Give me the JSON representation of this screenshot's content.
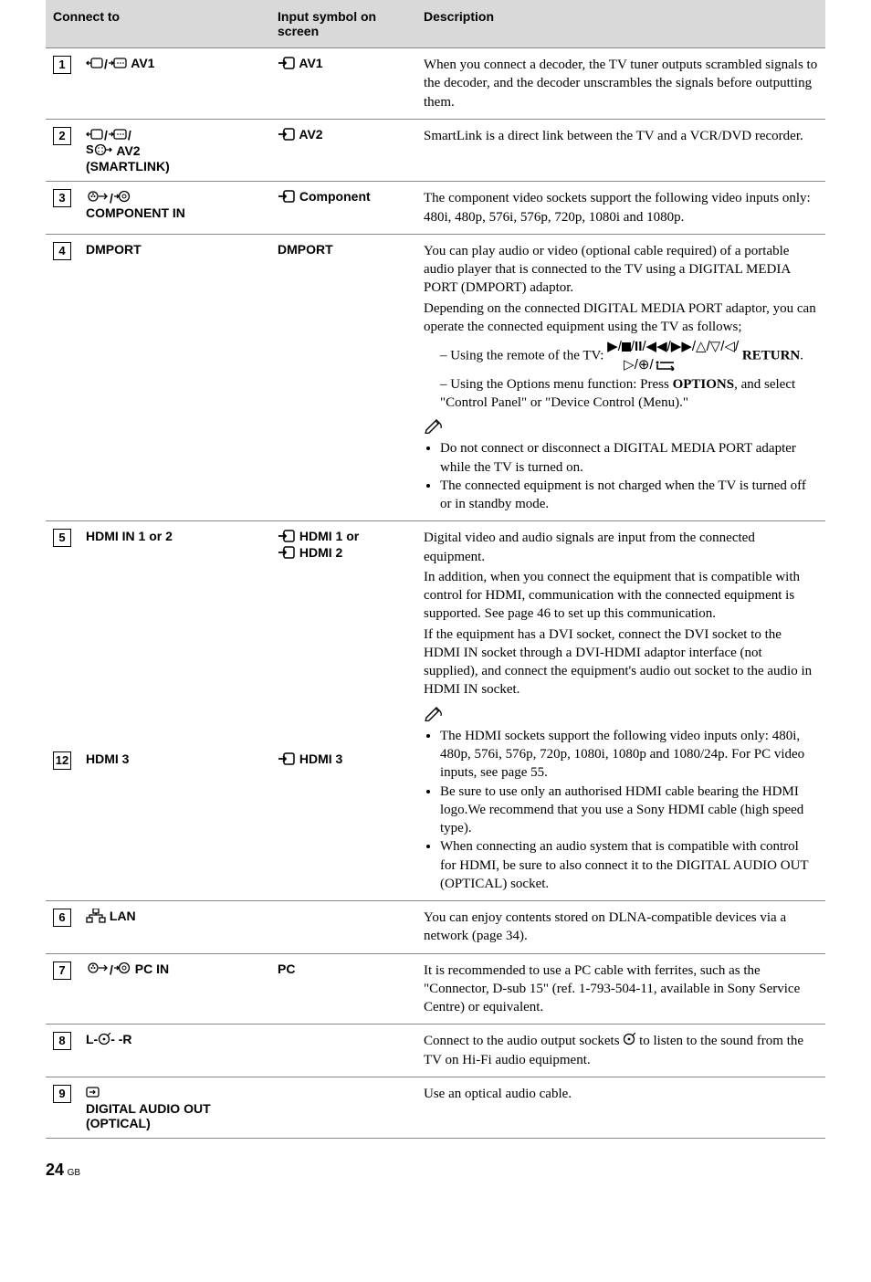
{
  "header": {
    "col1": "Connect to",
    "col2": "Input symbol on screen",
    "col3": "Description"
  },
  "rows": [
    {
      "num": "1",
      "connect_pre_icons": [
        "scart-out",
        "slash",
        "scart-in"
      ],
      "connect_label": "AV1",
      "symbol_pre_icons": [
        "input-arrow"
      ],
      "symbol_label": "AV1",
      "desc_paragraphs": [
        "When you connect a decoder, the TV tuner outputs scrambled signals to the decoder, and the decoder unscrambles the signals before outputting them."
      ]
    },
    {
      "num": "2",
      "connect_lines": [
        {
          "pre_icons": [
            "scart-out",
            "slash",
            "scart-in",
            "slash"
          ],
          "label": ""
        },
        {
          "pre_icons": [
            "s-video"
          ],
          "label": "AV2"
        },
        {
          "pre_icons": [],
          "label": "(SMARTLINK)"
        }
      ],
      "symbol_pre_icons": [
        "input-arrow"
      ],
      "symbol_label": "AV2",
      "desc_paragraphs": [
        "SmartLink is a direct link between the TV and a VCR/DVD recorder."
      ]
    },
    {
      "num": "3",
      "connect_lines": [
        {
          "pre_icons": [
            "rca",
            "slash",
            "video-in"
          ],
          "label": ""
        },
        {
          "pre_icons": [],
          "label": "COMPONENT IN"
        }
      ],
      "symbol_pre_icons": [
        "input-arrow"
      ],
      "symbol_label": "Component",
      "desc_paragraphs": [
        "The component video sockets support the following video inputs only: 480i, 480p, 576i, 576p, 720p, 1080i and 1080p."
      ]
    },
    {
      "num": "4",
      "connect_label_plain": "DMPORT",
      "symbol_label_plain": "DMPORT",
      "desc_blocks": [
        {
          "type": "p",
          "text": "You can play audio or video (optional cable required) of a portable audio player that is connected to the TV using a DIGITAL MEDIA PORT (DMPORT) adaptor."
        },
        {
          "type": "p",
          "text": "Depending on the connected DIGITAL MEDIA PORT adaptor, you can operate the connected equipment using the TV as follows;"
        },
        {
          "type": "indent-remote",
          "prefix": "– Using the remote of the TV: ",
          "suffix_bold": " RETURN",
          "suffix": "."
        },
        {
          "type": "indent",
          "prefix": "– Using the Options menu function: Press ",
          "bold": "OPTIONS",
          "suffix": ", and select \"Control Panel\" or \"Device Control (Menu).\""
        },
        {
          "type": "pen"
        },
        {
          "type": "bullet",
          "text": "Do not connect or disconnect a DIGITAL MEDIA PORT adapter while the TV is turned on."
        },
        {
          "type": "bullet",
          "text": "The connected equipment is not charged when the TV is turned off or in standby mode."
        }
      ]
    },
    {
      "group": true,
      "subrows": [
        {
          "num": "5",
          "connect_label_plain": "HDMI IN 1 or 2",
          "symbol_pre_icons": [
            "input-arrow"
          ],
          "symbol_label": "HDMI 1 or",
          "symbol_line2_pre_icons": [
            "input-arrow"
          ],
          "symbol_line2_label": "HDMI 2"
        },
        {
          "num": "12",
          "connect_label_plain": "HDMI 3",
          "symbol_pre_icons": [
            "input-arrow"
          ],
          "symbol_label": "HDMI 3"
        }
      ],
      "desc_blocks": [
        {
          "type": "p",
          "text": "Digital video and audio signals are input from the connected equipment."
        },
        {
          "type": "p",
          "text": "In addition, when you connect the equipment that is compatible with control for HDMI, communication with the connected equipment is supported. See page 46 to set up this communication."
        },
        {
          "type": "p",
          "text": "If the equipment has a DVI socket, connect the DVI socket to the HDMI IN socket through a DVI-HDMI adaptor interface (not supplied), and connect the equipment's audio out socket to the audio in HDMI IN socket."
        },
        {
          "type": "pen"
        },
        {
          "type": "bullet",
          "text": "The HDMI sockets support the following video inputs only: 480i, 480p, 576i, 576p, 720p, 1080i, 1080p and 1080/24p. For PC video inputs, see page 55."
        },
        {
          "type": "bullet",
          "text": "Be sure to use only an authorised HDMI cable bearing the HDMI logo.We recommend that you use a Sony HDMI cable (high speed type)."
        },
        {
          "type": "bullet",
          "text": "When connecting an audio system that is compatible with control for HDMI, be sure to also connect it to the DIGITAL AUDIO OUT (OPTICAL) socket."
        }
      ]
    },
    {
      "num": "6",
      "connect_pre_icons": [
        "lan"
      ],
      "connect_label": "LAN",
      "symbol_label_plain": "",
      "desc_paragraphs": [
        "You can enjoy contents stored on DLNA-compatible devices via a network (page 34)."
      ]
    },
    {
      "num": "7",
      "connect_pre_icons": [
        "rca",
        "slash",
        "video-in"
      ],
      "connect_label": "PC IN",
      "symbol_label_plain": "PC",
      "desc_paragraphs": [
        "It is recommended to use a PC cable with ferrites, such as the \"Connector, D-sub 15\" (ref. 1-793-504-11, available in Sony Service Centre) or equivalent."
      ]
    },
    {
      "num": "8",
      "connect_audio_lr": true,
      "symbol_label_plain": "",
      "desc_audio_lr": {
        "pre": "Connect to the audio output sockets ",
        "post": " to listen to the sound from the TV on Hi-Fi audio equipment."
      }
    },
    {
      "num": "9",
      "connect_lines": [
        {
          "pre_icons": [
            "optical"
          ],
          "label": ""
        },
        {
          "pre_icons": [],
          "label": "DIGITAL AUDIO OUT (OPTICAL)"
        }
      ],
      "symbol_label_plain": "",
      "desc_paragraphs": [
        "Use an optical audio cable."
      ]
    }
  ],
  "footer": {
    "page": "24",
    "region": "GB"
  }
}
